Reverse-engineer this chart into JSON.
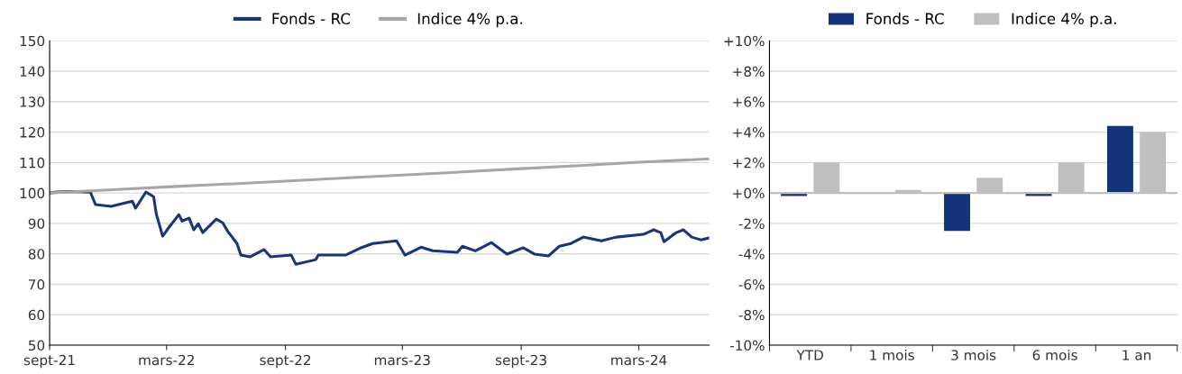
{
  "chart_data": [
    {
      "type": "line",
      "legend": "top",
      "grid": "y",
      "line_style": "solid",
      "marker": "none",
      "xlim": [
        "2021-09-01",
        "2024-06-18"
      ],
      "xticks": [
        {
          "value": "2021-09-01",
          "label": "sept-21"
        },
        {
          "value": "2022-03-01",
          "label": "mars-22"
        },
        {
          "value": "2022-09-01",
          "label": "sept-22"
        },
        {
          "value": "2023-03-01",
          "label": "mars-23"
        },
        {
          "value": "2023-09-01",
          "label": "sept-23"
        },
        {
          "value": "2024-03-01",
          "label": "mars-24"
        }
      ],
      "ylim": [
        50,
        150
      ],
      "yticks": [
        50,
        60,
        70,
        80,
        90,
        100,
        110,
        120,
        130,
        140,
        150
      ],
      "series": [
        {
          "name": "Fonds - RC",
          "color": "#1a3578",
          "x": [
            "2021-09-01",
            "2021-09-12",
            "2021-10-02",
            "2021-11-03",
            "2021-11-11",
            "2021-12-05",
            "2022-01-07",
            "2022-01-12",
            "2022-01-28",
            "2022-02-09",
            "2022-02-13",
            "2022-02-23",
            "2022-03-04",
            "2022-03-20",
            "2022-03-25",
            "2022-04-05",
            "2022-04-12",
            "2022-04-19",
            "2022-04-26",
            "2022-05-17",
            "2022-05-27",
            "2022-06-04",
            "2022-06-18",
            "2022-06-24",
            "2022-07-08",
            "2022-07-30",
            "2022-08-09",
            "2022-09-10",
            "2022-09-17",
            "2022-10-18",
            "2022-10-22",
            "2022-12-03",
            "2022-12-27",
            "2023-01-14",
            "2023-02-20",
            "2023-03-05",
            "2023-03-30",
            "2023-04-17",
            "2023-05-25",
            "2023-06-02",
            "2023-06-22",
            "2023-07-17",
            "2023-08-10",
            "2023-09-04",
            "2023-09-22",
            "2023-10-13",
            "2023-10-30",
            "2023-11-17",
            "2023-12-06",
            "2024-01-03",
            "2024-01-26",
            "2024-03-08",
            "2024-03-24",
            "2024-04-04",
            "2024-04-09",
            "2024-04-28",
            "2024-05-09",
            "2024-05-22",
            "2024-06-05",
            "2024-06-17"
          ],
          "values": [
            100,
            100.3,
            100.5,
            100.3,
            96.2,
            95.6,
            97.3,
            95,
            100.3,
            98.8,
            93.2,
            85.8,
            88.5,
            92.9,
            90.8,
            91.7,
            87.9,
            89.9,
            87,
            91.4,
            90.2,
            87.3,
            83.4,
            79.6,
            79,
            81.4,
            79,
            79.6,
            76.6,
            78.1,
            79.6,
            79.6,
            82,
            83.4,
            84.3,
            79.6,
            82.2,
            81,
            80.5,
            82.5,
            81,
            83.7,
            79.9,
            82,
            79.9,
            79.3,
            82.5,
            83.4,
            85.5,
            84.3,
            85.5,
            86.4,
            87.9,
            87,
            84,
            87,
            87.9,
            85.5,
            84.6,
            85.2
          ]
        },
        {
          "name": "Indice 4% p.a.",
          "color": "#a6a6a6",
          "x": [
            "2021-09-01",
            "2021-12-01",
            "2022-03-01",
            "2022-06-01",
            "2022-09-01",
            "2022-12-01",
            "2023-03-01",
            "2023-06-01",
            "2023-09-01",
            "2023-12-01",
            "2024-03-01",
            "2024-06-18"
          ],
          "values": [
            100,
            101,
            102,
            102.9,
            103.9,
            104.9,
            105.9,
            106.9,
            108,
            109,
            110.1,
            111.2
          ]
        }
      ]
    },
    {
      "type": "bar",
      "legend": "top",
      "grid": "y",
      "categories": [
        "YTD",
        "1 mois",
        "3 mois",
        "6 mois",
        "1 an"
      ],
      "ylim": [
        -10,
        10
      ],
      "yticks": [
        {
          "value": -10,
          "label": "-10%"
        },
        {
          "value": -8,
          "label": "-8%"
        },
        {
          "value": -6,
          "label": "-6%"
        },
        {
          "value": -4,
          "label": "-4%"
        },
        {
          "value": -2,
          "label": "-2%"
        },
        {
          "value": 0,
          "label": "+0%"
        },
        {
          "value": 2,
          "label": "+2%"
        },
        {
          "value": 4,
          "label": "+4%"
        },
        {
          "value": 6,
          "label": "+6%"
        },
        {
          "value": 8,
          "label": "+8%"
        },
        {
          "value": 10,
          "label": "+10%"
        }
      ],
      "series": [
        {
          "name": "Fonds - RC",
          "color": "#15337a",
          "values": [
            -0.2,
            0.0,
            -2.5,
            -0.2,
            4.4
          ]
        },
        {
          "name": "Indice 4% p.a.",
          "color": "#bfbfbf",
          "values": [
            2.0,
            0.2,
            1.0,
            2.0,
            4.0
          ]
        }
      ]
    }
  ]
}
